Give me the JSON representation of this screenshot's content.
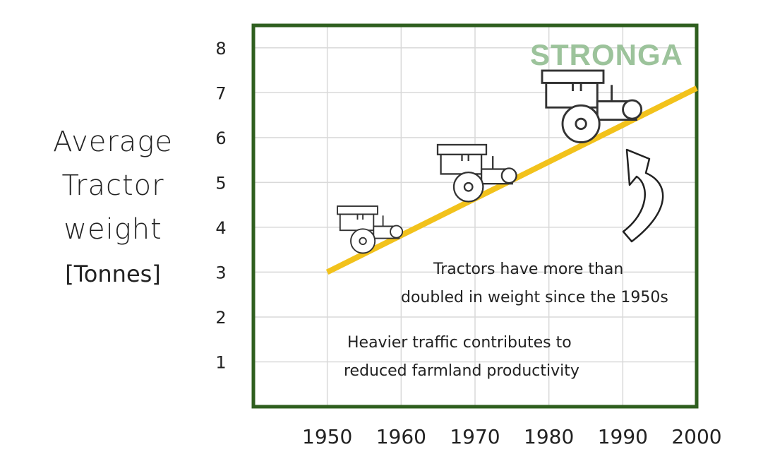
{
  "chart_data": {
    "type": "line",
    "xlabel": "",
    "ylabel_lines": [
      "Average",
      "Tractor",
      "weight"
    ],
    "ylabel_unit": "[Tonnes]",
    "x_ticks": [
      "1950",
      "1960",
      "1970",
      "1980",
      "1990",
      "2000"
    ],
    "y_ticks": [
      "1",
      "2",
      "3",
      "4",
      "5",
      "6",
      "7",
      "8"
    ],
    "xlim": [
      1940,
      2000
    ],
    "ylim": [
      0,
      8.5
    ],
    "grid": true,
    "series": [
      {
        "x": [
          1950,
          2000
        ],
        "y": [
          3.0,
          7.1
        ]
      }
    ],
    "annotations": [
      "Tractors have more than",
      "doubled in weight since the 1950s",
      "Heavier traffic contributes to",
      "reduced farmland productivity"
    ],
    "brand": "STRONGA",
    "colors": {
      "frame": "#2f5f1f",
      "line": "#f2c21b",
      "grid": "#d9d9d9",
      "brand": "#9cc39b"
    }
  }
}
